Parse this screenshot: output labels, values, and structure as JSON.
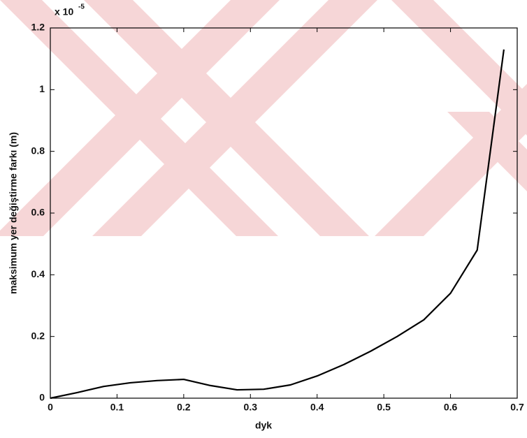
{
  "chart_data": {
    "type": "line",
    "xlabel": "dyk",
    "ylabel": "maksimum yer değiştirme farkı (m)",
    "y_multiplier": {
      "base": "x 10",
      "exponent": "-5"
    },
    "x": [
      0,
      0.04,
      0.08,
      0.12,
      0.16,
      0.2,
      0.24,
      0.28,
      0.32,
      0.36,
      0.4,
      0.44,
      0.48,
      0.52,
      0.56,
      0.6,
      0.64,
      0.68
    ],
    "series": [
      {
        "color": "#000000",
        "values": [
          0,
          0.018,
          0.038,
          0.05,
          0.057,
          0.061,
          0.041,
          0.027,
          0.029,
          0.043,
          0.072,
          0.109,
          0.152,
          0.2,
          0.254,
          0.34,
          0.48,
          1.13
        ]
      }
    ],
    "xlim": [
      0,
      0.7
    ],
    "xticks": [
      0,
      0.1,
      0.2,
      0.3,
      0.4,
      0.5,
      0.6,
      0.7
    ],
    "ylim": [
      0,
      1.2
    ],
    "yticks": [
      0,
      0.2,
      0.4,
      0.6,
      0.8,
      1,
      1.2
    ],
    "grid": false
  }
}
